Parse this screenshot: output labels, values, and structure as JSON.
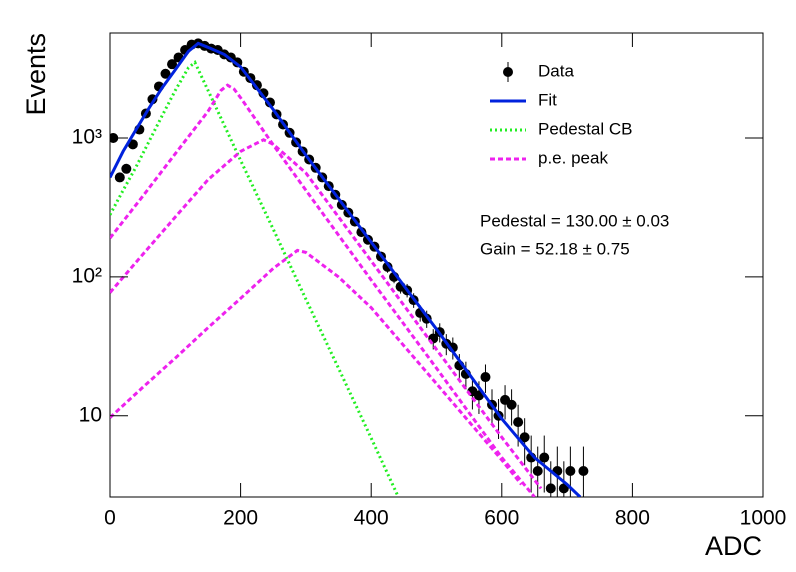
{
  "chart_data": {
    "type": "line",
    "log_y": true,
    "legend": "top right",
    "xlabel": "ADC",
    "ylabel": "Events",
    "xlim": [
      0,
      1000
    ],
    "xticks": [
      0,
      200,
      400,
      600,
      800,
      1000
    ],
    "ylim": [
      2.6,
      5700
    ],
    "yticks": [
      10,
      {
        "value": 100,
        "label": "10²"
      },
      {
        "value": 1000,
        "label": "10³"
      }
    ],
    "annotations": [
      "Pedestal = 130.00 ± 0.03",
      "Gain = 52.18 ± 0.75"
    ],
    "series": [
      {
        "name": "Data",
        "color": "#000000",
        "style": "points",
        "x": [
          5,
          15,
          25,
          35,
          45,
          55,
          65,
          75,
          85,
          95,
          105,
          115,
          125,
          135,
          145,
          155,
          165,
          175,
          185,
          195,
          205,
          215,
          225,
          235,
          245,
          255,
          265,
          275,
          285,
          295,
          305,
          315,
          325,
          335,
          345,
          355,
          365,
          375,
          385,
          395,
          405,
          415,
          425,
          435,
          445,
          455,
          465,
          475,
          485,
          495,
          505,
          515,
          525,
          535,
          545,
          555,
          565,
          575,
          585,
          595,
          605,
          615,
          625,
          635,
          645,
          655,
          665,
          675,
          685,
          695,
          705,
          725
        ],
        "values": [
          1000,
          520,
          600,
          900,
          1150,
          1500,
          1900,
          2350,
          2900,
          3400,
          3800,
          4300,
          4700,
          4800,
          4600,
          4400,
          4300,
          4000,
          3800,
          3500,
          3000,
          2700,
          2400,
          2100,
          1800,
          1480,
          1250,
          1090,
          930,
          800,
          700,
          610,
          520,
          450,
          390,
          330,
          290,
          250,
          210,
          185,
          165,
          140,
          118,
          100,
          85,
          80,
          68,
          55,
          50,
          36,
          40,
          33,
          31,
          23,
          20,
          15,
          14,
          19,
          12,
          10,
          13,
          12,
          9,
          7,
          5,
          4,
          5,
          3,
          4,
          3,
          4,
          4
        ],
        "errors": [
          31.6,
          22.8,
          24.5,
          30,
          33.9,
          38.7,
          43.6,
          48.5,
          53.9,
          58.3,
          61.6,
          65.6,
          68.6,
          69.3,
          67.8,
          66.3,
          65.6,
          63.2,
          61.6,
          59.2,
          54.8,
          52,
          49,
          45.8,
          42.4,
          38.5,
          35.4,
          33,
          30.5,
          28.3,
          26.5,
          24.7,
          22.8,
          21.2,
          19.7,
          18.2,
          17,
          15.8,
          14.5,
          13.6,
          12.8,
          11.8,
          10.9,
          10,
          9.2,
          8.9,
          8.2,
          7.4,
          7.1,
          6,
          6.3,
          5.7,
          5.6,
          4.8,
          4.5,
          3.9,
          3.7,
          4.4,
          3.5,
          3.2,
          3.6,
          3.5,
          3,
          2.6,
          2.2,
          2,
          2.2,
          1.7,
          2,
          1.7,
          2,
          2
        ]
      },
      {
        "name": "Fit",
        "color": "#0022dd",
        "style": "line",
        "curves": [
          {
            "x": [
              0,
              20,
              40,
              60,
              80,
              100,
              120,
              135,
              150,
              175,
              200,
              250,
              300,
              400,
              500,
              600,
              650,
              700,
              720
            ],
            "values": [
              520,
              800,
              1150,
              1650,
              2300,
              3100,
              4200,
              4800,
              4500,
              4000,
              3250,
              1600,
              750,
              178,
              42,
              9.5,
              5,
              3.2,
              2.6
            ]
          }
        ]
      },
      {
        "name": "Pedestal CB",
        "color": "#22ee22",
        "style": "dotted",
        "curves": [
          {
            "x": [
              0,
              20,
              40,
              60,
              80,
              100,
              120,
              130,
              160,
              200,
              250,
              300,
              350,
              400,
              440
            ],
            "values": [
              280,
              420,
              620,
              950,
              1450,
              2200,
              3200,
              3500,
              1750,
              690,
              220,
              69,
              22,
              6.9,
              2.7
            ]
          }
        ]
      },
      {
        "name": "p.e. peak",
        "color": "#ee22ee",
        "style": "dashed",
        "curves": [
          {
            "x": [
              0,
              50,
              100,
              150,
              170,
              180,
              190,
              200,
              250,
              300,
              400,
              500,
              600,
              650
            ],
            "values": [
              190,
              380,
              770,
              1550,
              2200,
              2400,
              2250,
              1950,
              890,
              420,
              95,
              22,
              5,
              2.6
            ]
          },
          {
            "x": [
              0,
              50,
              100,
              150,
              200,
              235,
              250,
              300,
              400,
              500,
              600,
              660
            ],
            "values": [
              77,
              145,
              270,
              500,
              800,
              970,
              900,
              560,
              130,
              30,
              7,
              3
            ]
          },
          {
            "x": [
              0,
              50,
              100,
              150,
              200,
              250,
              287,
              300,
              350,
              400,
              500,
              600,
              630
            ],
            "values": [
              9.7,
              16,
              26,
              43,
              70,
              115,
              155,
              150,
              100,
              60,
              17,
              4.8,
              3.2
            ]
          }
        ]
      }
    ]
  }
}
